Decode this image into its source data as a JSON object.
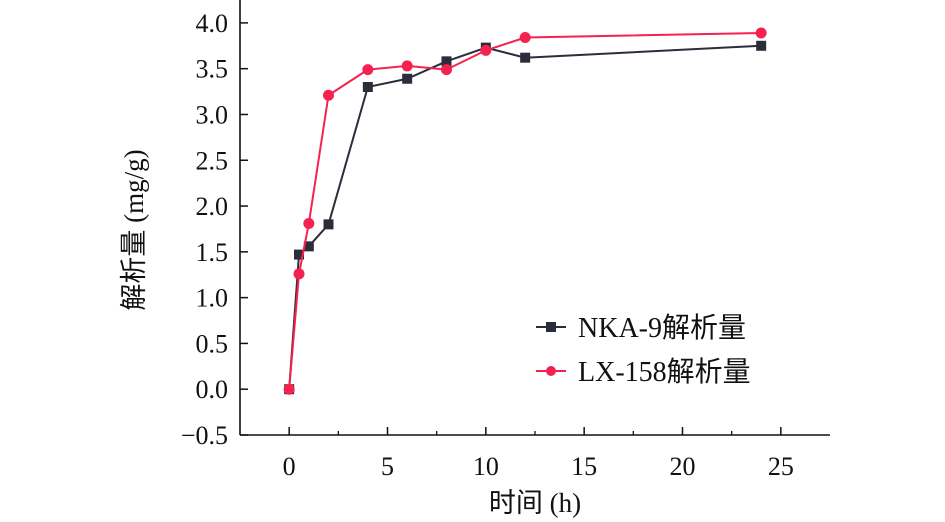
{
  "chart_data": {
    "type": "line",
    "title": "",
    "xlabel": "时间 (h)",
    "ylabel": "解析量 (mg/g)",
    "xlim": [
      -2.5,
      27.5
    ],
    "ylim": [
      -0.5,
      4.25
    ],
    "xticks": [
      0,
      5,
      10,
      15,
      20,
      25
    ],
    "xtick_labels": [
      "0",
      "5",
      "10",
      "15",
      "20",
      "25"
    ],
    "yticks": [
      -0.5,
      0,
      0.5,
      1,
      1.5,
      2,
      2.5,
      3,
      3.5,
      4
    ],
    "ytick_labels": [
      "−0.5",
      "0.0",
      "0.5",
      "1.0",
      "1.5",
      "2.0",
      "2.5",
      "3.0",
      "3.5",
      "4.0"
    ],
    "grid": false,
    "legend_position": "lower-right",
    "x": [
      0,
      0.5,
      1,
      2,
      4,
      6,
      8,
      10,
      12,
      24
    ],
    "series": [
      {
        "name": "NKA-9解析量",
        "color": "#2b2d3a",
        "marker": "square",
        "values": [
          0,
          1.47,
          1.56,
          1.8,
          3.3,
          3.39,
          3.58,
          3.73,
          3.62,
          3.75
        ]
      },
      {
        "name": "LX-158解析量",
        "color": "#f5224f",
        "marker": "circle",
        "values": [
          0,
          1.26,
          1.81,
          3.21,
          3.49,
          3.53,
          3.49,
          3.7,
          3.84,
          3.89
        ]
      }
    ]
  }
}
